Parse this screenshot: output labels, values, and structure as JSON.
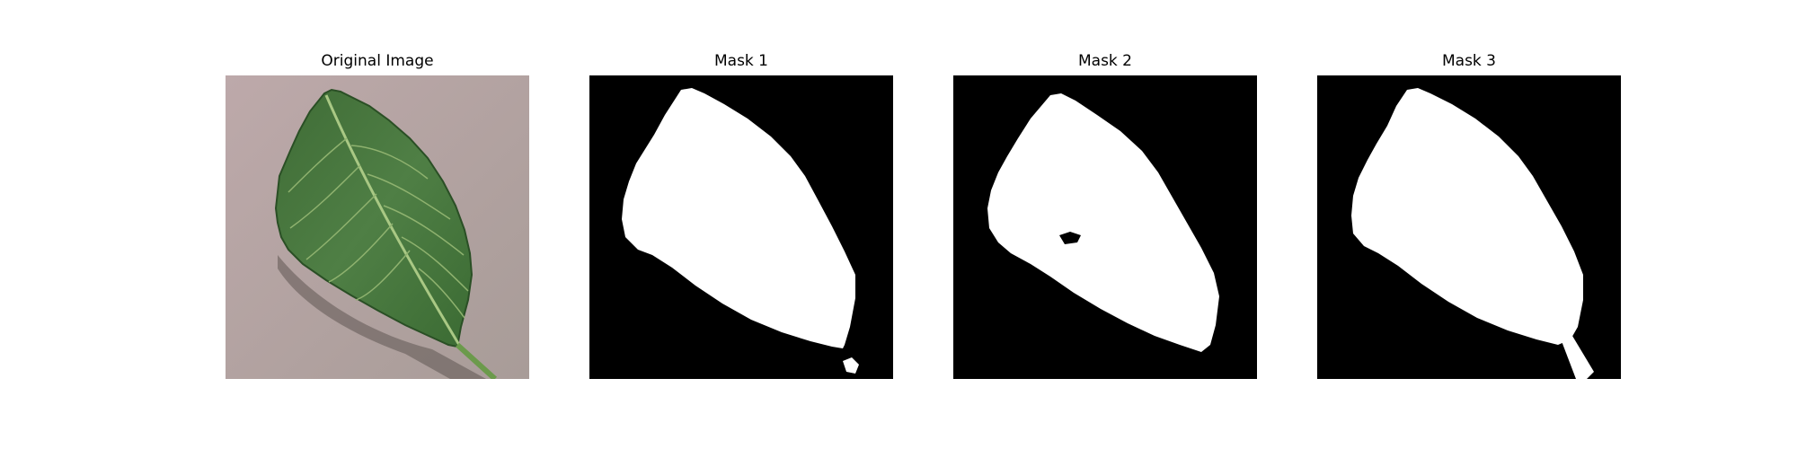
{
  "figure": {
    "panels": [
      {
        "title": "Original Image",
        "kind": "photo"
      },
      {
        "title": "Mask 1",
        "kind": "mask"
      },
      {
        "title": "Mask 2",
        "kind": "mask"
      },
      {
        "title": "Mask 3",
        "kind": "mask"
      }
    ]
  },
  "colors": {
    "background": "#b7a7a8",
    "leaf_dark": "#2f5a2a",
    "leaf_mid": "#4f7e43",
    "vein": "#9cc07c",
    "mask_bg": "#000000",
    "mask_fg": "#ffffff"
  }
}
